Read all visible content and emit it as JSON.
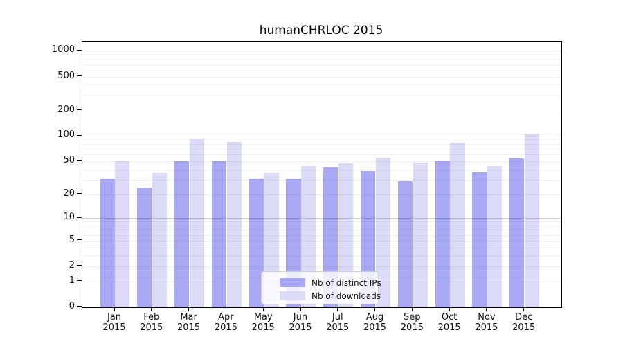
{
  "title": "humanCHRLOC 2015",
  "chart_data": {
    "type": "bar",
    "title": "humanCHRLOC 2015",
    "yscale": "log1p (symlog-like, 0 at baseline)",
    "grid": "horizontal major+minor, drawn over bars",
    "legend_position": "lower center",
    "categories": [
      "Jan 2015",
      "Feb 2015",
      "Mar 2015",
      "Apr 2015",
      "May 2015",
      "Jun 2015",
      "Jul 2015",
      "Aug 2015",
      "Sep 2015",
      "Oct 2015",
      "Nov 2015",
      "Dec 2015"
    ],
    "series": [
      {
        "name": "Nb of distinct IPs",
        "color": "#a8a8f4",
        "values": [
          31,
          24,
          50,
          50,
          31,
          31,
          42,
          38,
          29,
          51,
          37,
          54
        ]
      },
      {
        "name": "Nb of downloads",
        "color": "#dbdbf8",
        "values": [
          50,
          36,
          92,
          85,
          36,
          44,
          47,
          55,
          48,
          83,
          44,
          106
        ]
      }
    ],
    "y_tick_values": [
      0,
      1,
      2,
      5,
      10,
      20,
      50,
      100,
      200,
      500,
      1000
    ],
    "y_tick_labels": [
      "0",
      "1",
      "2",
      "5",
      "10",
      "20",
      "50",
      "100",
      "200",
      "500",
      "1000"
    ],
    "ylim": [
      0,
      1285
    ],
    "xlabel": "",
    "ylabel": ""
  },
  "colors": {
    "frame": "#000000",
    "grid_major": "#c9c9c9",
    "grid_minor": "#ebebeb",
    "text": "#111111",
    "legend_border": "#cccccc"
  }
}
